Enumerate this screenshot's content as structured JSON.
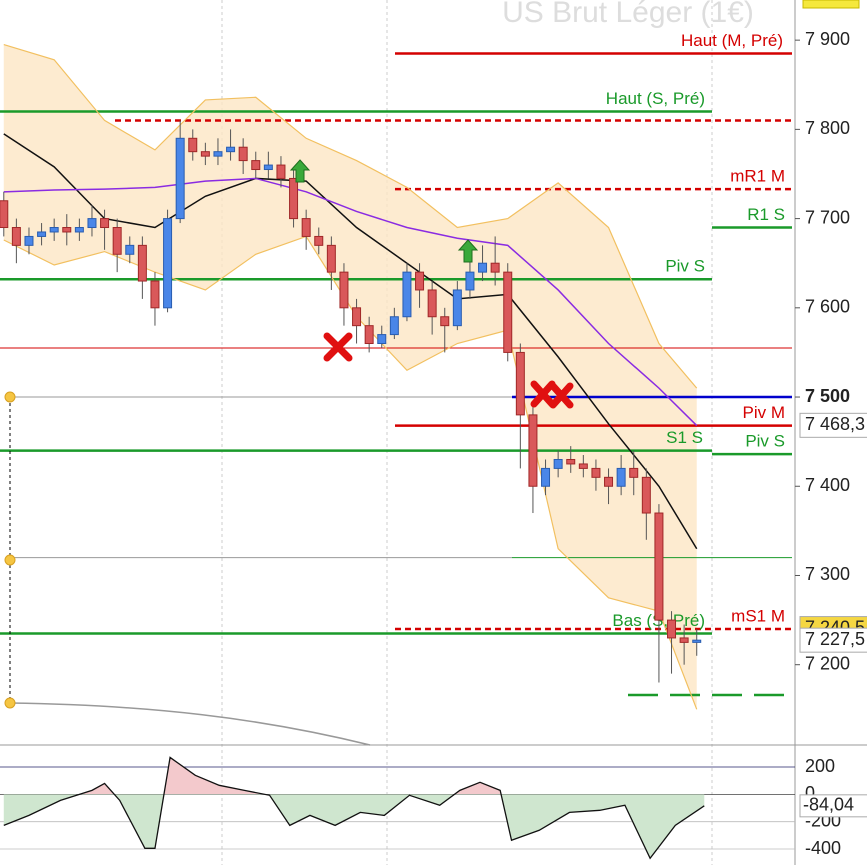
{
  "chart_data": {
    "type": "candlestick",
    "title": "US Brut Léger (1€)",
    "xlim": [
      -0.3,
      62.8
    ],
    "ylim": [
      7110,
      7945
    ],
    "yticks": [
      {
        "value": 7900,
        "label": "7 900"
      },
      {
        "value": 7800,
        "label": "7 800"
      },
      {
        "value": 7700,
        "label": "7 700"
      },
      {
        "value": 7600,
        "label": "7 600"
      },
      {
        "value": 7500,
        "label": "7 500"
      },
      {
        "value": 7400,
        "label": "7 400"
      },
      {
        "value": 7300,
        "label": "7 300"
      },
      {
        "value": 7200,
        "label": "7 200"
      }
    ],
    "up_color": "#4a86e8",
    "down_color": "#d9585a",
    "open": [
      7720,
      7690,
      7670,
      7680,
      7685,
      7690,
      7685,
      7690,
      7700,
      7690,
      7660,
      7670,
      7630,
      7600,
      7700,
      7790,
      7775,
      7770,
      7775,
      7780,
      7765,
      7755,
      7760,
      7745,
      7700,
      7680,
      7670,
      7640,
      7600,
      7580,
      7560,
      7570,
      7590,
      7640,
      7620,
      7590,
      7580,
      7620,
      7640,
      7650,
      7640,
      7550,
      7480,
      7400,
      7420,
      7430,
      7425,
      7420,
      7410,
      7400,
      7420,
      7410,
      7370,
      7250,
      7230,
      7225
    ],
    "high": [
      7730,
      7700,
      7690,
      7695,
      7700,
      7705,
      7700,
      7715,
      7710,
      7700,
      7680,
      7680,
      7640,
      7710,
      7810,
      7800,
      7785,
      7790,
      7800,
      7790,
      7775,
      7775,
      7770,
      7755,
      7710,
      7690,
      7680,
      7650,
      7610,
      7590,
      7580,
      7600,
      7650,
      7650,
      7630,
      7600,
      7630,
      7655,
      7670,
      7680,
      7650,
      7560,
      7490,
      7430,
      7440,
      7445,
      7435,
      7430,
      7420,
      7435,
      7440,
      7420,
      7380,
      7260,
      7245,
      7240
    ],
    "low": [
      7680,
      7650,
      7660,
      7670,
      7675,
      7670,
      7675,
      7680,
      7665,
      7640,
      7650,
      7610,
      7580,
      7595,
      7695,
      7765,
      7760,
      7760,
      7765,
      7750,
      7745,
      7745,
      7735,
      7690,
      7665,
      7660,
      7620,
      7580,
      7560,
      7550,
      7555,
      7565,
      7585,
      7600,
      7570,
      7550,
      7575,
      7610,
      7630,
      7625,
      7540,
      7420,
      7370,
      7390,
      7410,
      7415,
      7410,
      7395,
      7380,
      7390,
      7390,
      7340,
      7180,
      7190,
      7200,
      7210
    ],
    "close": [
      7690,
      7670,
      7680,
      7685,
      7690,
      7685,
      7690,
      7700,
      7690,
      7660,
      7670,
      7630,
      7600,
      7700,
      7790,
      7775,
      7770,
      7775,
      7780,
      7765,
      7755,
      7760,
      7745,
      7700,
      7680,
      7670,
      7640,
      7600,
      7580,
      7560,
      7570,
      7590,
      7640,
      7620,
      7590,
      7580,
      7620,
      7640,
      7650,
      7640,
      7550,
      7480,
      7400,
      7420,
      7430,
      7425,
      7420,
      7410,
      7400,
      7420,
      7410,
      7370,
      7250,
      7230,
      7225,
      7227.5
    ],
    "overlays": [
      {
        "color": "#f2c060",
        "x": [
          0,
          4,
          8,
          12,
          16,
          20,
          24,
          28,
          32,
          36,
          40,
          44,
          48,
          52,
          55
        ],
        "values": [
          7895,
          7878,
          7810,
          7777,
          7833,
          7836,
          7790,
          7765,
          7735,
          7690,
          7700,
          7740,
          7690,
          7560,
          7510
        ]
      },
      {
        "color": "#f2c060",
        "x": [
          0,
          4,
          8,
          12,
          16,
          20,
          24,
          28,
          32,
          36,
          40,
          44,
          48,
          52,
          55
        ],
        "values": [
          7676,
          7648,
          7663,
          7640,
          7620,
          7660,
          7680,
          7590,
          7530,
          7560,
          7575,
          7330,
          7275,
          7260,
          7150
        ]
      },
      {
        "color": "#111111",
        "x": [
          0,
          4,
          8,
          12,
          16,
          20,
          24,
          28,
          32,
          36,
          40,
          44,
          48,
          52,
          55
        ],
        "values": [
          7795,
          7758,
          7700,
          7690,
          7725,
          7745,
          7742,
          7690,
          7650,
          7610,
          7615,
          7545,
          7470,
          7400,
          7330
        ]
      },
      {
        "color": "#8a2be2",
        "x": [
          0,
          4,
          8,
          12,
          16,
          20,
          24,
          28,
          32,
          36,
          40,
          44,
          48,
          52,
          55
        ],
        "values": [
          7730,
          7732,
          7733,
          7735,
          7742,
          7745,
          7730,
          7708,
          7690,
          7678,
          7670,
          7620,
          7560,
          7510,
          7468
        ]
      }
    ],
    "levels": [
      {
        "label": "Haut (M, Pré)",
        "value": 7885,
        "color": "#d40000"
      },
      {
        "label": "Haut (S, Pré)",
        "value": 7820,
        "color": "#1a9a2a"
      },
      {
        "value": 7810,
        "color": "#d40000",
        "dashed": true
      },
      {
        "label": "mR1 M",
        "value": 7733,
        "color": "#d40000",
        "dashed": true
      },
      {
        "label": "R1 S",
        "value": 7690,
        "color": "#1a9a2a"
      },
      {
        "label": "Piv S",
        "value": 7632,
        "color": "#1a9a2a"
      },
      {
        "value": 7555,
        "color": "#d40000"
      },
      {
        "value": 7500,
        "color": "#999999"
      },
      {
        "value": 7500,
        "color": "#0000cc"
      },
      {
        "label": "Piv M",
        "value": 7468,
        "color": "#d40000"
      },
      {
        "label": "S1 S",
        "value": 7440,
        "color": "#1a9a2a"
      },
      {
        "label": "Piv S",
        "value": 7436,
        "color": "#1a9a2a"
      },
      {
        "value": 7320,
        "color": "#999999"
      },
      {
        "value": 7320,
        "color": "#1a9a2a"
      },
      {
        "label": "mS1 M",
        "value": 7240,
        "color": "#d40000",
        "dashed": true
      },
      {
        "label": "Bas (S, Pré)",
        "value": 7235,
        "color": "#1a9a2a"
      },
      {
        "value": 7166,
        "color": "#1a9a2a",
        "dashed": true
      }
    ],
    "price_tags": [
      {
        "value": 7468.3,
        "label": "7 468,3",
        "color": "#8a2be2",
        "background": "#ffffff"
      },
      {
        "value": 7240.5,
        "label": "7 240,5",
        "color": "#000000",
        "background": "#f5d742"
      },
      {
        "value": 7227.5,
        "label": "7 227,5",
        "color": "#000000",
        "background": "#ffffff"
      }
    ],
    "oscillator": {
      "ylim": [
        -517,
        361
      ],
      "yticks": [
        200,
        0,
        -200,
        -400
      ],
      "x": [
        0,
        2,
        4.5,
        7,
        8,
        9.2,
        11.2,
        12,
        13.2,
        15.2,
        17.1,
        19.1,
        21.1,
        22.7,
        24.3,
        26.3,
        28.3,
        30.2,
        32.2,
        34.6,
        36.2,
        37.8,
        39.4,
        40.3,
        42.5,
        44.9,
        47.3,
        49.3,
        51.3,
        53.3,
        55.6
      ],
      "values": [
        -227,
        -154,
        -44,
        29,
        80,
        -44,
        -395,
        -395,
        270,
        139,
        66,
        29,
        -7,
        -227,
        -154,
        -227,
        -132,
        -154,
        -7,
        -80,
        29,
        88,
        29,
        -336,
        -263,
        -132,
        -117,
        -80,
        -468,
        -227,
        -84.04
      ],
      "value_labels": [
        null,
        null,
        null,
        null,
        null,
        null,
        null,
        null,
        null,
        null,
        null,
        null,
        null,
        null,
        null,
        null,
        null,
        null,
        null,
        null,
        null,
        null,
        null,
        null,
        null,
        null,
        null,
        null,
        null,
        null,
        "-84,04"
      ],
      "positive_color": "#f3c9cc",
      "negative_color": "#cfe6cf"
    }
  }
}
